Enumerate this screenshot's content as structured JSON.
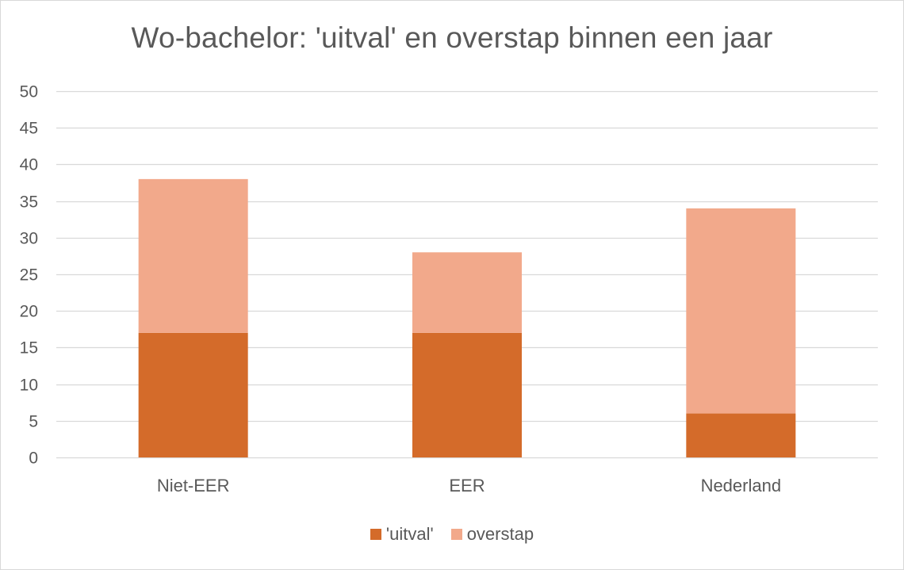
{
  "chart_data": {
    "type": "bar",
    "stacked": true,
    "title": "Wo-bachelor: 'uitval' en overstap binnen een jaar",
    "categories": [
      "Niet-EER",
      "EER",
      "Nederland"
    ],
    "series": [
      {
        "name": "'uitval'",
        "values": [
          17,
          17,
          6
        ],
        "color": "#d46b2a"
      },
      {
        "name": "overstap",
        "values": [
          21,
          11,
          28
        ],
        "color": "#f2a98b"
      }
    ],
    "xlabel": "",
    "ylabel": "",
    "ylim": [
      0,
      50
    ],
    "yticks": [
      0,
      5,
      10,
      15,
      20,
      25,
      30,
      35,
      40,
      45,
      50
    ],
    "grid": true,
    "legend_position": "bottom"
  }
}
